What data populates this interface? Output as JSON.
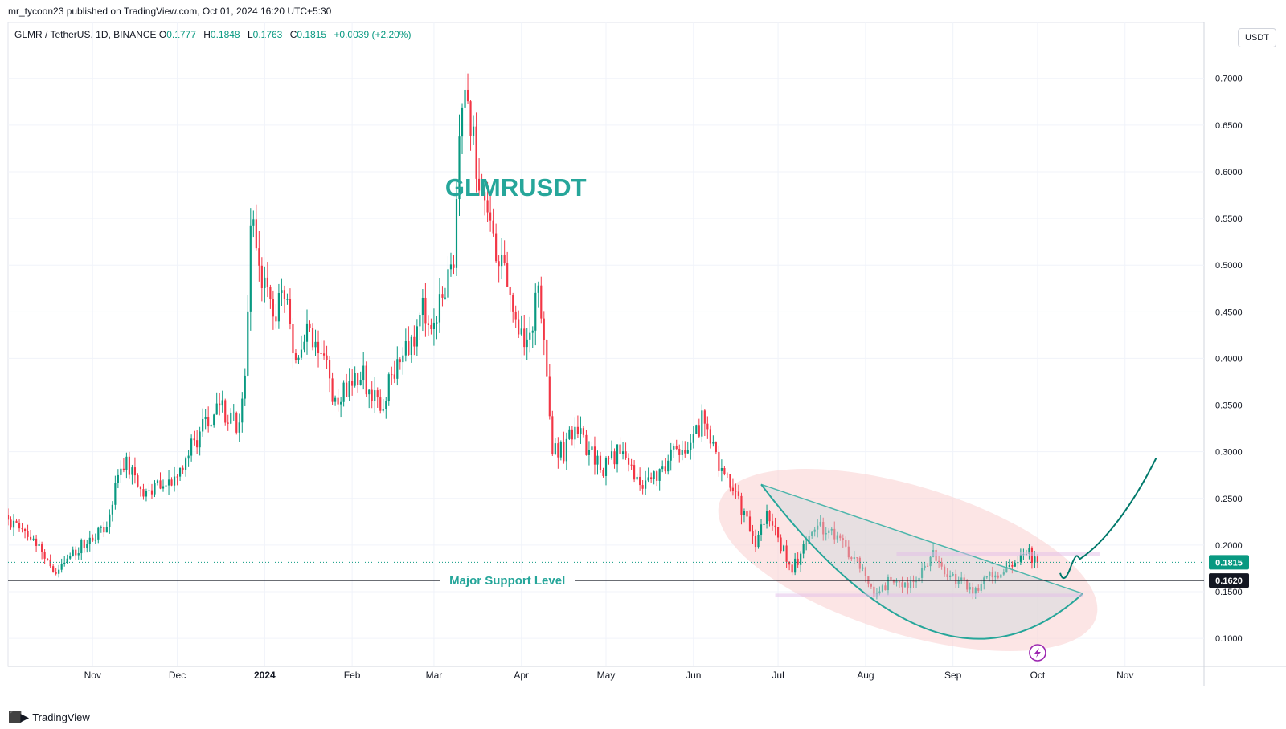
{
  "header": {
    "publish_line": "mr_tycoon23 published on TradingView.com, Oct 01, 2024 16:20 UTC+5:30",
    "symbol_line": "GLMR / TetherUS, 1D, BINANCE",
    "ohlc": {
      "o_label": "O",
      "o_value": "0.1777",
      "h_label": "H",
      "h_value": "0.1848",
      "l_label": "L",
      "l_value": "0.1763",
      "c_label": "C",
      "c_value": "0.1815",
      "change": "+0.0039 (+2.20%)"
    },
    "currency_button": "USDT"
  },
  "footer": {
    "brand_text": "TradingView",
    "logo_icon": "tradingview-logo-icon"
  },
  "colors": {
    "up": "#089981",
    "down": "#f23645",
    "annotation": "#26a69a",
    "zone": "#f9d0d0",
    "support": "#131722"
  },
  "chart_data": {
    "type": "candlestick",
    "title": "GLMRUSDT",
    "x_tick_labels": [
      "Nov",
      "Dec",
      "2024",
      "Feb",
      "Mar",
      "Apr",
      "May",
      "Jun",
      "Jul",
      "Aug",
      "Sep",
      "Oct",
      "Nov"
    ],
    "x_ticks": [
      "2023-11-01",
      "2023-12-01",
      "2024-01-01",
      "2024-02-01",
      "2024-03-01",
      "2024-04-01",
      "2024-05-01",
      "2024-06-01",
      "2024-07-01",
      "2024-08-01",
      "2024-09-01",
      "2024-10-01",
      "2024-11-01"
    ],
    "x_range": [
      "2023-10-02",
      "2024-11-29"
    ],
    "y_tick_labels": [
      "0.1000",
      "0.1500",
      "0.2000",
      "0.2500",
      "0.3000",
      "0.3500",
      "0.4000",
      "0.4500",
      "0.5000",
      "0.5500",
      "0.6000",
      "0.6500",
      "0.7000"
    ],
    "ylim": [
      0.07,
      0.76
    ],
    "last_price": {
      "value": 0.1815,
      "label": "0.1815"
    },
    "support": {
      "value": 0.162,
      "label": "0.1620",
      "text": "Major Support Level"
    },
    "price_path": [
      [
        "2023-10-02",
        0.232
      ],
      [
        "2023-10-08",
        0.212
      ],
      [
        "2023-10-14",
        0.205
      ],
      [
        "2023-10-19",
        0.168
      ],
      [
        "2023-10-25",
        0.19
      ],
      [
        "2023-11-02",
        0.21
      ],
      [
        "2023-11-07",
        0.22
      ],
      [
        "2023-11-12",
        0.29
      ],
      [
        "2023-11-16",
        0.28
      ],
      [
        "2023-11-22",
        0.25
      ],
      [
        "2023-11-26",
        0.27
      ],
      [
        "2023-12-02",
        0.275
      ],
      [
        "2023-12-08",
        0.31
      ],
      [
        "2023-12-12",
        0.33
      ],
      [
        "2023-12-17",
        0.35
      ],
      [
        "2023-12-23",
        0.33
      ],
      [
        "2023-12-26",
        0.37
      ],
      [
        "2023-12-28",
        0.55
      ],
      [
        "2023-12-31",
        0.5
      ],
      [
        "2024-01-05",
        0.45
      ],
      [
        "2024-01-09",
        0.47
      ],
      [
        "2024-01-13",
        0.4
      ],
      [
        "2024-01-18",
        0.43
      ],
      [
        "2024-01-23",
        0.4
      ],
      [
        "2024-01-27",
        0.35
      ],
      [
        "2024-02-01",
        0.37
      ],
      [
        "2024-02-06",
        0.38
      ],
      [
        "2024-02-12",
        0.35
      ],
      [
        "2024-02-17",
        0.39
      ],
      [
        "2024-02-22",
        0.41
      ],
      [
        "2024-02-27",
        0.45
      ],
      [
        "2024-03-02",
        0.44
      ],
      [
        "2024-03-06",
        0.48
      ],
      [
        "2024-03-09",
        0.5
      ],
      [
        "2024-03-11",
        0.62
      ],
      [
        "2024-03-13",
        0.69
      ],
      [
        "2024-03-16",
        0.64
      ],
      [
        "2024-03-19",
        0.56
      ],
      [
        "2024-03-23",
        0.53
      ],
      [
        "2024-03-27",
        0.5
      ],
      [
        "2024-03-31",
        0.43
      ],
      [
        "2024-04-04",
        0.41
      ],
      [
        "2024-04-08",
        0.47
      ],
      [
        "2024-04-10",
        0.43
      ],
      [
        "2024-04-13",
        0.3
      ],
      [
        "2024-04-17",
        0.3
      ],
      [
        "2024-04-21",
        0.33
      ],
      [
        "2024-04-26",
        0.3
      ],
      [
        "2024-05-01",
        0.28
      ],
      [
        "2024-05-06",
        0.3
      ],
      [
        "2024-05-11",
        0.28
      ],
      [
        "2024-05-16",
        0.26
      ],
      [
        "2024-05-21",
        0.28
      ],
      [
        "2024-05-26",
        0.3
      ],
      [
        "2024-05-31",
        0.3
      ],
      [
        "2024-06-06",
        0.34
      ],
      [
        "2024-06-09",
        0.3
      ],
      [
        "2024-06-14",
        0.27
      ],
      [
        "2024-06-19",
        0.24
      ],
      [
        "2024-06-24",
        0.2
      ],
      [
        "2024-06-28",
        0.23
      ],
      [
        "2024-07-03",
        0.2
      ],
      [
        "2024-07-07",
        0.175
      ],
      [
        "2024-07-12",
        0.2
      ],
      [
        "2024-07-17",
        0.22
      ],
      [
        "2024-07-22",
        0.21
      ],
      [
        "2024-07-27",
        0.19
      ],
      [
        "2024-08-01",
        0.175
      ],
      [
        "2024-08-05",
        0.145
      ],
      [
        "2024-08-10",
        0.16
      ],
      [
        "2024-08-15",
        0.155
      ],
      [
        "2024-08-20",
        0.165
      ],
      [
        "2024-08-26",
        0.19
      ],
      [
        "2024-08-31",
        0.17
      ],
      [
        "2024-09-05",
        0.16
      ],
      [
        "2024-09-09",
        0.15
      ],
      [
        "2024-09-14",
        0.165
      ],
      [
        "2024-09-19",
        0.17
      ],
      [
        "2024-09-24",
        0.185
      ],
      [
        "2024-09-28",
        0.195
      ],
      [
        "2024-10-01",
        0.1815
      ]
    ]
  }
}
